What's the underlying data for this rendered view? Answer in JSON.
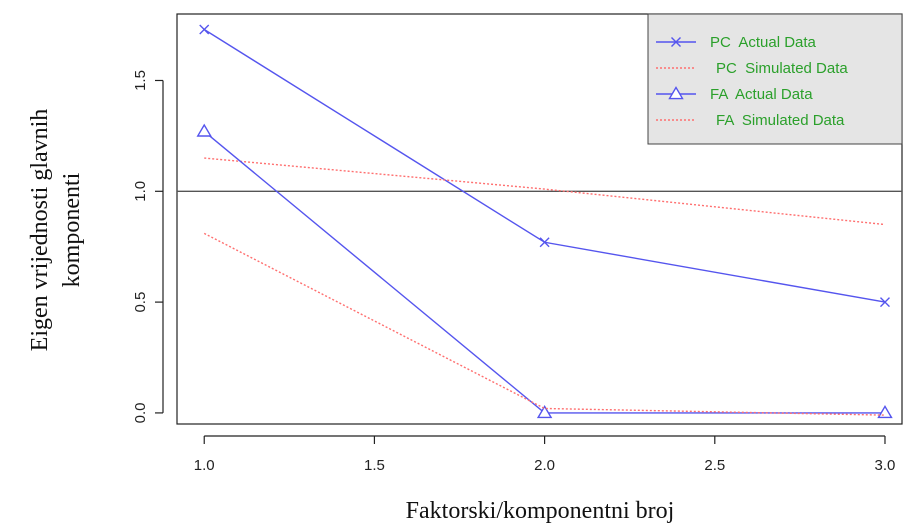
{
  "chart_data": {
    "type": "line",
    "xlabel": "Faktorski/komponentni broj",
    "ylabel": [
      "Eigen vrijednosti glavnih",
      "komponenti"
    ],
    "xlim": [
      0.92,
      3.05
    ],
    "ylim": [
      -0.05,
      1.8
    ],
    "x_ticks": [
      "1.0",
      "1.5",
      "2.0",
      "2.5",
      "3.0"
    ],
    "y_ticks": [
      "0.0",
      "0.5",
      "1.0",
      "1.5"
    ],
    "reference_line": 1.0,
    "grid": false,
    "legend_position": "top-right",
    "x": [
      1,
      2,
      3
    ],
    "series": [
      {
        "name": "PC  Actual Data",
        "values": [
          1.73,
          0.77,
          0.5
        ],
        "color": "#5555ee",
        "style": "solid",
        "marker": "x"
      },
      {
        "name": "PC  Simulated Data",
        "values": [
          1.15,
          1.01,
          0.85
        ],
        "color": "#ff6f6f",
        "style": "dotted",
        "marker": "none"
      },
      {
        "name": "FA  Actual Data",
        "values": [
          1.27,
          0.0,
          0.0
        ],
        "color": "#5555ee",
        "style": "solid",
        "marker": "triangle"
      },
      {
        "name": "FA  Simulated Data",
        "values": [
          0.81,
          0.02,
          -0.01
        ],
        "color": "#ff6f6f",
        "style": "dotted",
        "marker": "none"
      }
    ]
  }
}
